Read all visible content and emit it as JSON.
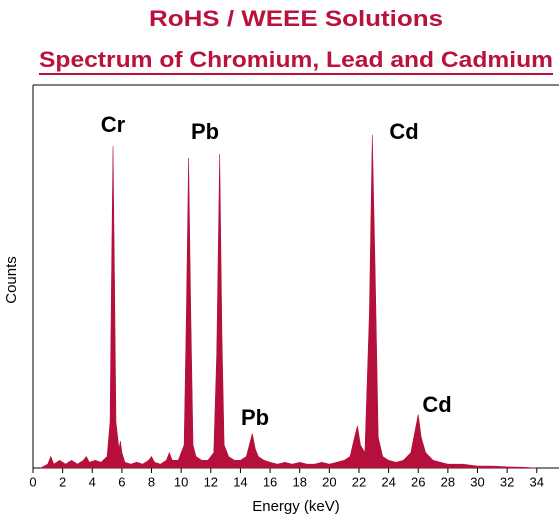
{
  "chart_data": {
    "type": "area",
    "title": "RoHS / WEEE Solutions",
    "subtitle": "Spectrum of Chromium, Lead and Cadmium",
    "x_label": "Energy (keV)",
    "y_label": "Counts",
    "color": "#b5103c",
    "xlim": [
      0,
      35.5
    ],
    "ylim": [
      0,
      100
    ],
    "xticks": [
      0,
      2,
      4,
      6,
      8,
      10,
      12,
      14,
      16,
      18,
      20,
      22,
      24,
      26,
      28,
      30,
      32,
      34
    ],
    "annotations": [
      "Cr",
      "Pb",
      "Pb",
      "Cd",
      "Cd"
    ],
    "x": [
      0.5,
      1.0,
      1.2,
      1.4,
      1.8,
      2.2,
      2.6,
      3.0,
      3.4,
      3.6,
      3.8,
      4.2,
      4.6,
      5.0,
      5.2,
      5.3,
      5.4,
      5.5,
      5.6,
      5.8,
      5.9,
      6.0,
      6.2,
      6.6,
      7.0,
      7.4,
      7.8,
      8.0,
      8.2,
      8.6,
      9.0,
      9.2,
      9.4,
      9.8,
      10.2,
      10.35,
      10.5,
      10.65,
      10.8,
      11.0,
      11.4,
      11.8,
      12.2,
      12.4,
      12.6,
      12.75,
      12.9,
      13.2,
      13.6,
      14.0,
      14.4,
      14.6,
      14.8,
      15.0,
      15.2,
      15.6,
      16.0,
      16.5,
      17.0,
      17.5,
      18.0,
      18.5,
      19.0,
      19.5,
      20.0,
      20.5,
      21.0,
      21.4,
      21.7,
      21.9,
      22.1,
      22.4,
      22.7,
      22.9,
      23.1,
      23.3,
      23.6,
      24.0,
      24.5,
      25.0,
      25.5,
      25.8,
      26.0,
      26.2,
      26.5,
      27.0,
      27.5,
      28.0,
      28.5,
      29.0,
      30.0,
      31.0,
      32.0,
      33.0,
      34.0
    ],
    "values": [
      0,
      1,
      3,
      1,
      2,
      1,
      2,
      1,
      2,
      3,
      1.5,
      2,
      1.5,
      3,
      12,
      50,
      84,
      50,
      12,
      5,
      7,
      4,
      1.5,
      1,
      1.5,
      1,
      2,
      3,
      1.5,
      1,
      2,
      4,
      2,
      2,
      6,
      40,
      81,
      40,
      6,
      3,
      2,
      2,
      4,
      30,
      82,
      35,
      6,
      3,
      2,
      2,
      3,
      6,
      9,
      5,
      3,
      2,
      1.5,
      1,
      1.5,
      1,
      1.5,
      1,
      1,
      1.5,
      1,
      1.5,
      2,
      3,
      8,
      11,
      6,
      4,
      40,
      87,
      50,
      8,
      3,
      2,
      1.5,
      2,
      4,
      10,
      14,
      8,
      4,
      2,
      1.5,
      1,
      1,
      1,
      0.5,
      0.5,
      0.3,
      0.2,
      0
    ]
  }
}
